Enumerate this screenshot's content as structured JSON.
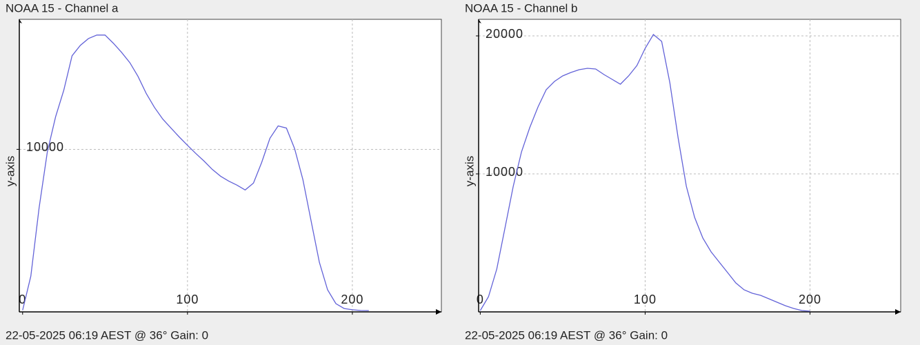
{
  "chart_data": [
    {
      "type": "line",
      "title": "NOAA 15 - Channel a",
      "y_label": "y-axis",
      "footer": "22-05-2025 06:19 AEST @ 36° Gain: 0",
      "x": [
        0,
        5,
        10,
        15,
        20,
        25,
        30,
        35,
        40,
        45,
        50,
        55,
        60,
        65,
        70,
        75,
        80,
        85,
        90,
        95,
        100,
        105,
        110,
        115,
        120,
        125,
        130,
        135,
        140,
        145,
        150,
        155,
        160,
        165,
        170,
        175,
        180,
        185,
        190,
        195,
        200,
        205,
        210
      ],
      "series": [
        {
          "color": "#6262d8",
          "values": [
            100,
            2200,
            6400,
            9830,
            12000,
            13640,
            15760,
            16400,
            16820,
            17030,
            17030,
            16530,
            15970,
            15340,
            14490,
            13430,
            12580,
            11860,
            11310,
            10760,
            10250,
            9750,
            9280,
            8770,
            8350,
            8050,
            7800,
            7500,
            7920,
            9190,
            10680,
            11440,
            11310,
            10040,
            8140,
            5590,
            3050,
            1360,
            510,
            210,
            130,
            85,
            80
          ]
        }
      ],
      "xlim": [
        -2,
        254
      ],
      "ylim": [
        0,
        18000
      ],
      "xticks": [
        0,
        100,
        200
      ],
      "yticks": [
        10000
      ],
      "grid": true
    },
    {
      "type": "line",
      "title": "NOAA 15 - Channel b",
      "y_label": "y-axis",
      "footer": "22-05-2025 06:19 AEST @ 36° Gain: 0",
      "x": [
        0,
        5,
        10,
        15,
        20,
        25,
        30,
        35,
        40,
        45,
        50,
        55,
        60,
        65,
        70,
        75,
        80,
        85,
        90,
        95,
        100,
        105,
        110,
        115,
        120,
        125,
        130,
        135,
        140,
        145,
        150,
        155,
        160,
        165,
        170,
        175,
        180,
        185,
        190,
        195,
        200
      ],
      "series": [
        {
          "color": "#6262d8",
          "values": [
            100,
            1100,
            3100,
            6100,
            9100,
            11600,
            13350,
            14850,
            16100,
            16700,
            17100,
            17350,
            17550,
            17650,
            17600,
            17200,
            16850,
            16500,
            17100,
            17850,
            19100,
            20100,
            19600,
            16600,
            12600,
            9100,
            6850,
            5350,
            4350,
            3600,
            2850,
            2100,
            1600,
            1350,
            1200,
            950,
            700,
            450,
            250,
            100,
            50
          ]
        }
      ],
      "xlim": [
        -1,
        255
      ],
      "ylim": [
        0,
        21200
      ],
      "xticks": [
        0,
        100,
        200
      ],
      "yticks": [
        10000,
        20000
      ],
      "grid": true
    }
  ]
}
